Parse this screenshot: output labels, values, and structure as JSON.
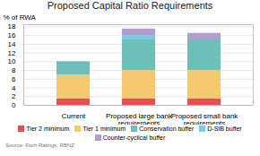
{
  "chart_data": {
    "type": "bar",
    "stacked": true,
    "title": "Proposed Capital Ratio Requirements",
    "ylabel": "% of RWA",
    "caption": "Source: Fitch Ratings, RBNZ",
    "categories": [
      "Current",
      "Proposed large bank\nrequirements",
      "Proposed small bank\nrequirements"
    ],
    "series": [
      {
        "name": "Tier 2 minimum",
        "color": "#e05252",
        "values": [
          1.5,
          1.5,
          1.5
        ]
      },
      {
        "name": "Tier 1 minimum",
        "color": "#f5c96e",
        "values": [
          5.5,
          6.5,
          6.5
        ]
      },
      {
        "name": "Conservation buffer",
        "color": "#6dbfb8",
        "values": [
          3.0,
          7.0,
          7.0
        ]
      },
      {
        "name": "D-SIB buffer",
        "color": "#7ec8e3",
        "values": [
          0.0,
          1.0,
          0.0
        ]
      },
      {
        "name": "Counter-cyclical buffer",
        "color": "#b09fcc",
        "values": [
          0.0,
          1.5,
          1.5
        ]
      }
    ],
    "ylim": [
      0,
      18.5
    ],
    "yticks": [
      0,
      2,
      4,
      6,
      8,
      10,
      12,
      14,
      16,
      18
    ],
    "grid": true,
    "legend": "bottom"
  }
}
